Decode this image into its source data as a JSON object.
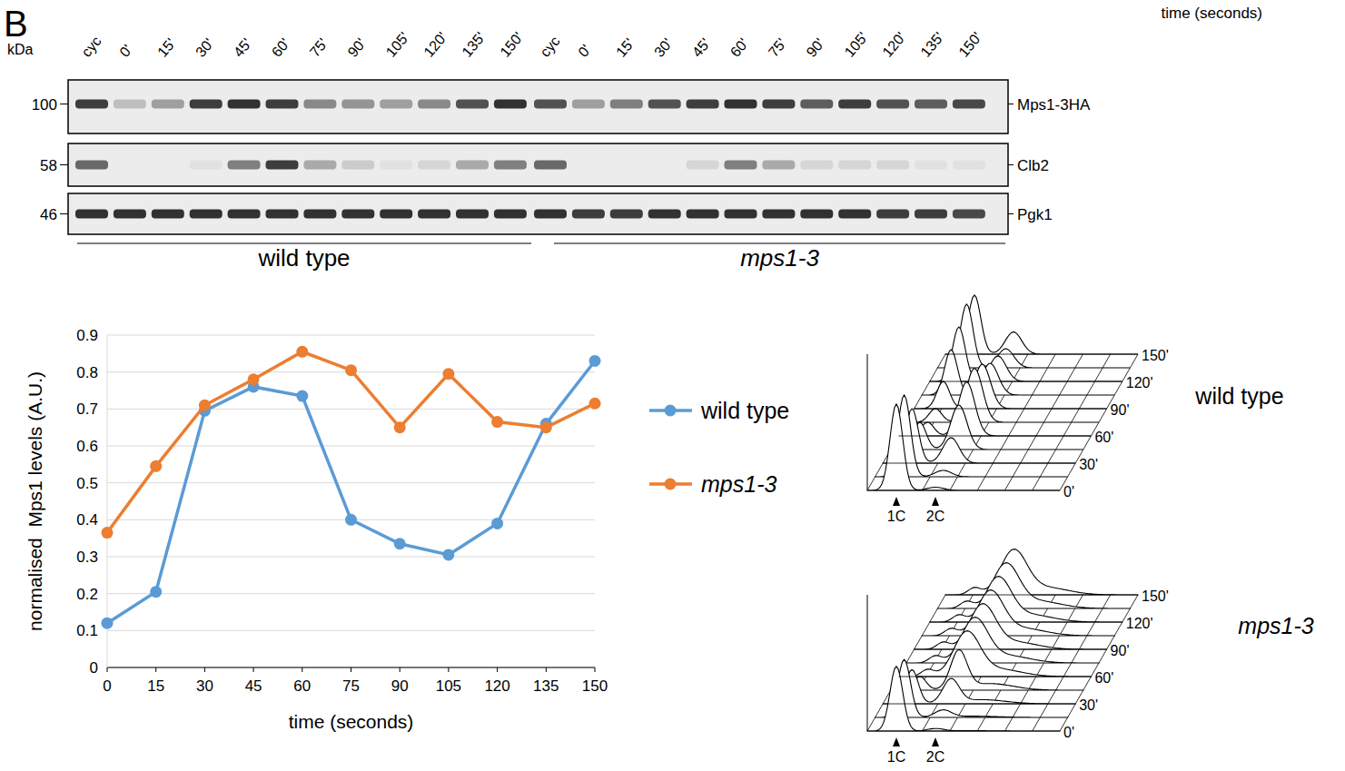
{
  "panel_letter": "B",
  "corner_text": "time (seconds)",
  "blot": {
    "kda_label": "kDa",
    "lanes": [
      "cyc",
      "0'",
      "15'",
      "30'",
      "45'",
      "60'",
      "75'",
      "90'",
      "105'",
      "120'",
      "135'",
      "150'",
      "cyc",
      "0'",
      "15'",
      "30'",
      "45'",
      "60'",
      "75'",
      "90'",
      "105'",
      "120'",
      "135'",
      "150'"
    ],
    "rows": [
      {
        "name": "Mps1-3HA",
        "kda": 100,
        "intensity": [
          0.8,
          0.2,
          0.35,
          0.8,
          0.85,
          0.8,
          0.45,
          0.4,
          0.35,
          0.45,
          0.7,
          0.85,
          0.7,
          0.35,
          0.5,
          0.7,
          0.8,
          0.85,
          0.8,
          0.65,
          0.8,
          0.7,
          0.65,
          0.75
        ]
      },
      {
        "name": "Clb2",
        "kda": 58,
        "intensity": [
          0.6,
          0,
          0,
          0.05,
          0.5,
          0.8,
          0.3,
          0.15,
          0.05,
          0.1,
          0.3,
          0.5,
          0.6,
          0,
          0,
          0,
          0.1,
          0.5,
          0.3,
          0.1,
          0.1,
          0.1,
          0.05,
          0.05
        ]
      },
      {
        "name": "Pgk1",
        "kda": 46,
        "intensity": [
          0.85,
          0.85,
          0.85,
          0.85,
          0.85,
          0.85,
          0.85,
          0.85,
          0.85,
          0.85,
          0.85,
          0.85,
          0.85,
          0.8,
          0.8,
          0.85,
          0.85,
          0.85,
          0.85,
          0.85,
          0.85,
          0.8,
          0.8,
          0.75
        ]
      }
    ],
    "groups": [
      {
        "label": "wild type",
        "italic": false
      },
      {
        "label": "mps1-3",
        "italic": true
      }
    ]
  },
  "chart_data": {
    "type": "line",
    "x": [
      0,
      15,
      30,
      45,
      60,
      75,
      90,
      105,
      120,
      135,
      150
    ],
    "xlim": [
      0,
      150
    ],
    "xticks": [
      0,
      15,
      30,
      45,
      60,
      75,
      90,
      105,
      120,
      135,
      150
    ],
    "ylim": [
      0,
      0.9
    ],
    "yticks": [
      0,
      0.1,
      0.2,
      0.3,
      0.4,
      0.5,
      0.6,
      0.7,
      0.8,
      0.9
    ],
    "x_label": "time (seconds)",
    "y_label": "normalised  Mps1 levels (A.U.)",
    "grid": true,
    "legend": "right",
    "marker": "circle",
    "series": [
      {
        "name": "wild type",
        "color": "#5b9bd5",
        "values": [
          0.12,
          0.205,
          0.695,
          0.76,
          0.735,
          0.4,
          0.335,
          0.305,
          0.39,
          0.66,
          0.83
        ]
      },
      {
        "name": "mps1-3",
        "color": "#ed7d31",
        "values": [
          0.365,
          0.545,
          0.71,
          0.78,
          0.855,
          0.805,
          0.65,
          0.795,
          0.665,
          0.65,
          0.715
        ]
      }
    ]
  },
  "facs": {
    "peak_labels": [
      "1C",
      "2C"
    ],
    "time_labels": [
      "0'",
      "30'",
      "60'",
      "90'",
      "120'",
      "150'"
    ],
    "profiles": [
      {
        "label": "wild type",
        "italic": false,
        "times": [
          0,
          15,
          30,
          45,
          60,
          75,
          90,
          105,
          120,
          135,
          150
        ],
        "g1_fraction": [
          0.95,
          0.9,
          0.6,
          0.3,
          0.15,
          0.15,
          0.3,
          0.5,
          0.6,
          0.7,
          0.65
        ]
      },
      {
        "label": "mps1-3",
        "italic": true,
        "times": [
          0,
          15,
          30,
          45,
          60,
          75,
          90,
          105,
          120,
          135,
          150
        ],
        "g1_fraction": [
          0.95,
          0.85,
          0.5,
          0.2,
          0.1,
          0.1,
          0.1,
          0.1,
          0.1,
          0.1,
          0.1
        ]
      }
    ]
  }
}
